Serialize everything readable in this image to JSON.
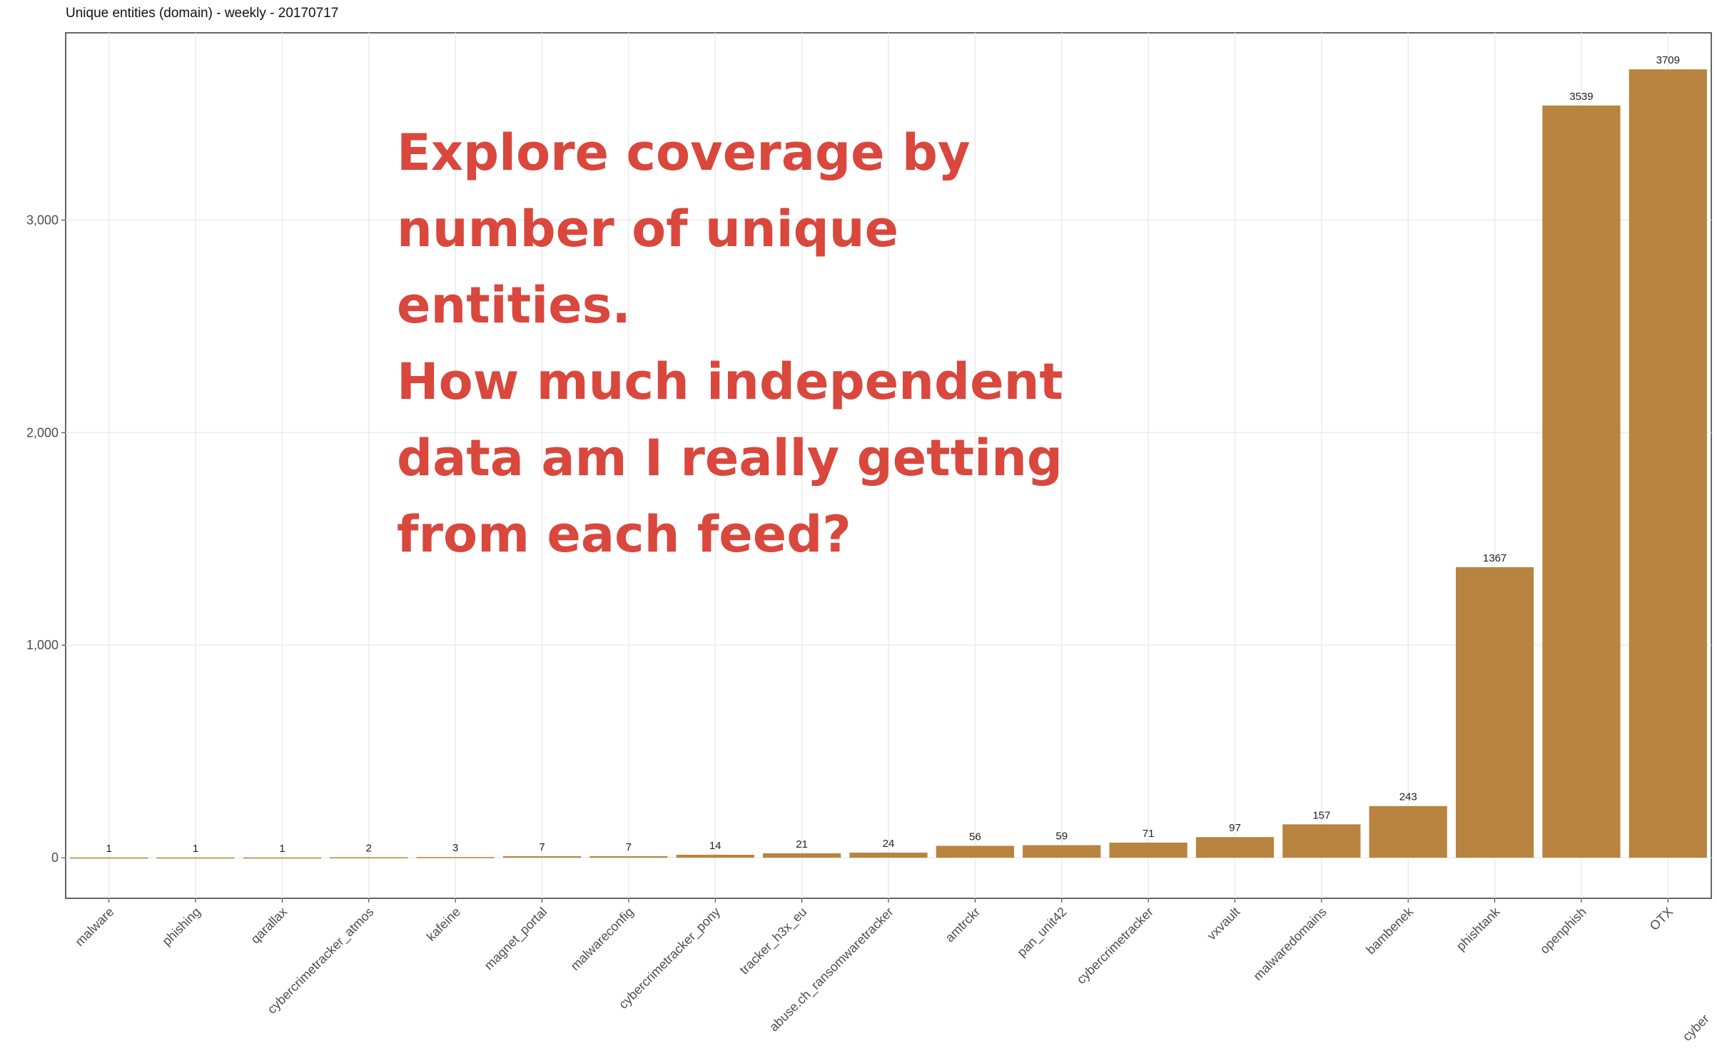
{
  "chart_data": {
    "type": "bar",
    "title": "Unique entities (domain) - weekly - 20170717",
    "categories": [
      "malware",
      "phishing",
      "qarallax",
      "cybercrimetracker_atmos",
      "kafeine",
      "magnet_portal",
      "malwareconfig",
      "cybercrimetracker_pony",
      "tracker_h3x_eu",
      "abuse.ch_ransomwaretracker",
      "amtrckr",
      "pan_unit42",
      "cybercrimetracker",
      "vxvault",
      "malwaredomains",
      "bambenek",
      "phishtank",
      "openphish",
      "OTX"
    ],
    "values": [
      1,
      1,
      1,
      2,
      3,
      7,
      7,
      14,
      21,
      24,
      56,
      59,
      71,
      97,
      157,
      243,
      1367,
      3539,
      3709
    ],
    "color": "#b8843f",
    "ylim": [
      -191,
      3881
    ],
    "yticks": [
      0,
      {
        "value": 1000,
        "label": "1,000"
      },
      {
        "value": 2000,
        "label": "2,000"
      },
      {
        "value": 3000,
        "label": "3,000"
      }
    ],
    "grid": true,
    "annotation": [
      "Explore coverage by",
      "number of unique",
      "entities.",
      "How much independent",
      "data am I really getting",
      "from each feed?"
    ],
    "edge_label": "cyber"
  }
}
